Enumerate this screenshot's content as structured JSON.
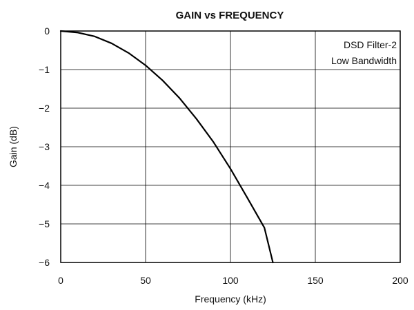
{
  "chart_data": {
    "type": "line",
    "title": "GAIN vs FREQUENCY",
    "xlabel": "Frequency (kHz)",
    "ylabel": "Gain (dB)",
    "xlim": [
      0,
      200
    ],
    "ylim": [
      -6,
      0
    ],
    "x_ticks": [
      0,
      50,
      100,
      150,
      200
    ],
    "y_ticks": [
      0,
      -1,
      -2,
      -3,
      -4,
      -5,
      -6
    ],
    "x_tick_labels": [
      "0",
      "50",
      "100",
      "150",
      "200"
    ],
    "y_tick_labels": [
      "0",
      "−1",
      "−2",
      "−3",
      "−4",
      "−5",
      "−6"
    ],
    "grid": true,
    "annotation": [
      "DSD Filter-2",
      "Low Bandwidth"
    ],
    "series": [
      {
        "x": [
          0,
          10,
          20,
          30,
          40,
          50,
          60,
          70,
          80,
          90,
          100,
          110,
          120,
          125
        ],
        "y": [
          0,
          -0.04,
          -0.14,
          -0.32,
          -0.57,
          -0.89,
          -1.28,
          -1.74,
          -2.28,
          -2.88,
          -3.57,
          -4.33,
          -5.1,
          -6.0
        ],
        "color": "#000000"
      }
    ]
  }
}
